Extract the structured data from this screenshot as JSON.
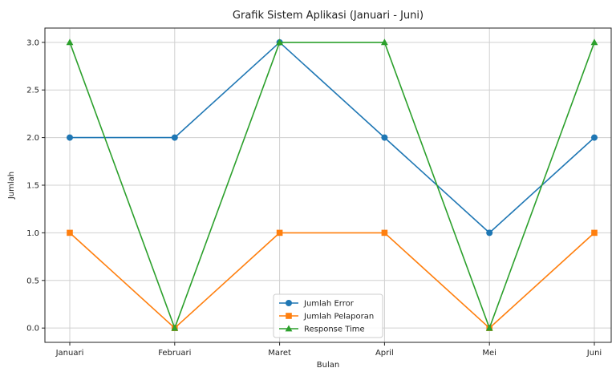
{
  "chart_data": {
    "type": "line",
    "title": "Grafik Sistem Aplikasi (Januari - Juni)",
    "xlabel": "Bulan",
    "ylabel": "Jumlah",
    "categories": [
      "Januari",
      "Februari",
      "Maret",
      "April",
      "Mei",
      "Juni"
    ],
    "yticks": [
      "0.0",
      "0.5",
      "1.0",
      "1.5",
      "2.0",
      "2.5",
      "3.0"
    ],
    "ylim": [
      -0.15,
      3.15
    ],
    "grid": true,
    "legend_position": "bottom-center",
    "series": [
      {
        "name": "Jumlah Error",
        "values": [
          2,
          2,
          3,
          2,
          1,
          2
        ],
        "color": "#1f77b4",
        "marker": "circle"
      },
      {
        "name": "Jumlah Pelaporan",
        "values": [
          1,
          0,
          1,
          1,
          0,
          1
        ],
        "color": "#ff7f0e",
        "marker": "square"
      },
      {
        "name": "Response Time",
        "values": [
          3,
          0,
          3,
          3,
          0,
          3
        ],
        "color": "#2ca02c",
        "marker": "triangle"
      }
    ]
  }
}
